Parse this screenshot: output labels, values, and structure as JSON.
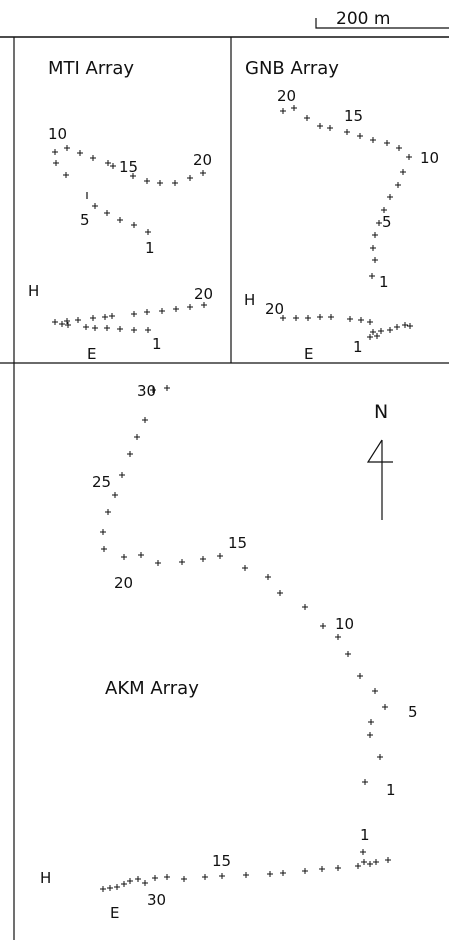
{
  "scale_bar": "200 m",
  "north": "N",
  "panels": [
    {
      "title": "MTI Array",
      "labels": [
        "10",
        "15",
        "20",
        "5",
        "1",
        "H",
        "20",
        "E",
        "1"
      ]
    },
    {
      "title": "GNB Array",
      "labels": [
        "20",
        "15",
        "10",
        "5",
        "1",
        "H",
        "20",
        "E",
        "1"
      ]
    },
    {
      "title": "AKM Array",
      "labels": [
        "30",
        "25",
        "20",
        "15",
        "10",
        "5",
        "1",
        "H",
        "1",
        "15",
        "E",
        "30"
      ]
    }
  ]
}
